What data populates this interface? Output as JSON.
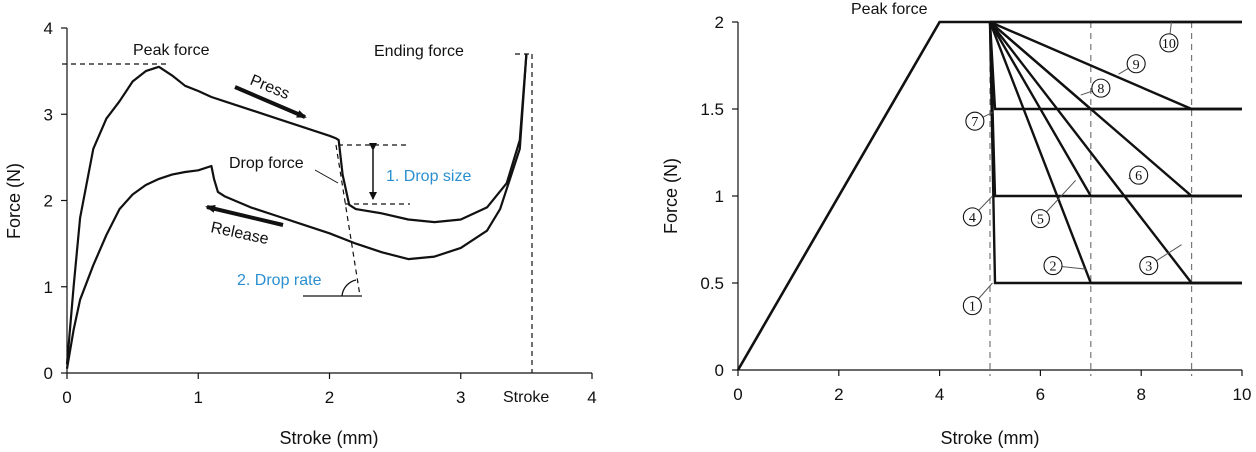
{
  "chart_data": [
    {
      "type": "line",
      "xlabel": "Stroke (mm)",
      "ylabel": "Force (N)",
      "xlim": [
        0,
        4
      ],
      "ylim": [
        0,
        4
      ],
      "xticks": [
        "0",
        "1",
        "2",
        "3",
        "4"
      ],
      "yticks": [
        "0",
        "1",
        "2",
        "3",
        "4"
      ],
      "grid": false,
      "series": [
        {
          "name": "Press",
          "x": [
            0.0,
            0.05,
            0.1,
            0.2,
            0.3,
            0.4,
            0.5,
            0.6,
            0.7,
            0.8,
            0.9,
            1.0,
            1.1,
            1.2,
            1.4,
            1.6,
            1.8,
            2.0,
            2.05,
            2.07,
            2.1,
            2.15,
            2.2,
            2.4,
            2.6,
            2.8,
            3.0,
            3.2,
            3.35,
            3.45,
            3.5
          ],
          "y": [
            0.1,
            1.0,
            1.8,
            2.6,
            2.95,
            3.15,
            3.38,
            3.5,
            3.55,
            3.45,
            3.33,
            3.27,
            3.2,
            3.15,
            3.05,
            2.95,
            2.85,
            2.75,
            2.72,
            2.7,
            2.3,
            1.95,
            1.9,
            1.85,
            1.78,
            1.75,
            1.78,
            1.92,
            2.2,
            2.7,
            3.7
          ]
        },
        {
          "name": "Release",
          "x": [
            3.5,
            3.45,
            3.3,
            3.2,
            3.0,
            2.8,
            2.6,
            2.4,
            2.2,
            2.0,
            1.8,
            1.6,
            1.4,
            1.2,
            1.15,
            1.12,
            1.1,
            1.0,
            0.9,
            0.8,
            0.7,
            0.6,
            0.5,
            0.4,
            0.3,
            0.2,
            0.1,
            0.05,
            0.0
          ],
          "y": [
            3.7,
            2.6,
            1.9,
            1.65,
            1.45,
            1.35,
            1.32,
            1.4,
            1.5,
            1.62,
            1.72,
            1.82,
            1.92,
            2.05,
            2.1,
            2.25,
            2.4,
            2.35,
            2.33,
            2.3,
            2.25,
            2.18,
            2.07,
            1.9,
            1.6,
            1.25,
            0.85,
            0.5,
            0.05
          ]
        }
      ],
      "peak_force": 3.6,
      "ending_force": 3.7,
      "drop_force_top": 2.65,
      "drop_force_bottom": 1.93,
      "annotations": {
        "peak_force": "Peak force",
        "ending_force": "Ending force",
        "press": "Press",
        "release": "Release",
        "drop_force": "Drop force",
        "drop_size": "1. Drop size",
        "drop_rate": "2. Drop rate",
        "stroke": "Stroke"
      }
    },
    {
      "type": "line",
      "xlabel": "Stroke (mm)",
      "ylabel": "Force (N)",
      "xlim": [
        0,
        10
      ],
      "ylim": [
        0,
        2
      ],
      "xticks": [
        "0",
        "2",
        "4",
        "6",
        "8",
        "10"
      ],
      "yticks": [
        "0",
        "0.5",
        "1",
        "1.5",
        "2"
      ],
      "grid": false,
      "reference_lines_x": [
        5,
        7,
        9
      ],
      "loading": {
        "x": [
          0,
          4,
          5,
          10
        ],
        "y": [
          0,
          2,
          2,
          2
        ]
      },
      "peak_label": "Peak force",
      "series": [
        {
          "id": "①",
          "x": [
            5,
            5.1,
            10
          ],
          "y": [
            2,
            0.5,
            0.5
          ]
        },
        {
          "id": "②",
          "x": [
            5,
            7,
            10
          ],
          "y": [
            2,
            0.5,
            0.5
          ]
        },
        {
          "id": "③",
          "x": [
            5,
            9,
            10
          ],
          "y": [
            2,
            0.5,
            0.5
          ]
        },
        {
          "id": "④",
          "x": [
            5,
            5.1,
            10
          ],
          "y": [
            2,
            1,
            1
          ]
        },
        {
          "id": "⑤",
          "x": [
            5,
            7,
            10
          ],
          "y": [
            2,
            1,
            1
          ]
        },
        {
          "id": "⑥",
          "x": [
            5,
            9,
            10
          ],
          "y": [
            2,
            1,
            1
          ]
        },
        {
          "id": "⑦",
          "x": [
            5,
            5.1,
            10
          ],
          "y": [
            2,
            1.5,
            1.5
          ]
        },
        {
          "id": "⑧",
          "x": [
            5,
            7,
            10
          ],
          "y": [
            2,
            1.5,
            1.5
          ]
        },
        {
          "id": "⑨",
          "x": [
            5,
            9,
            10
          ],
          "y": [
            2,
            1.5,
            1.5
          ]
        },
        {
          "id": "⑩",
          "x": [
            5,
            10
          ],
          "y": [
            2,
            2
          ]
        }
      ]
    }
  ]
}
